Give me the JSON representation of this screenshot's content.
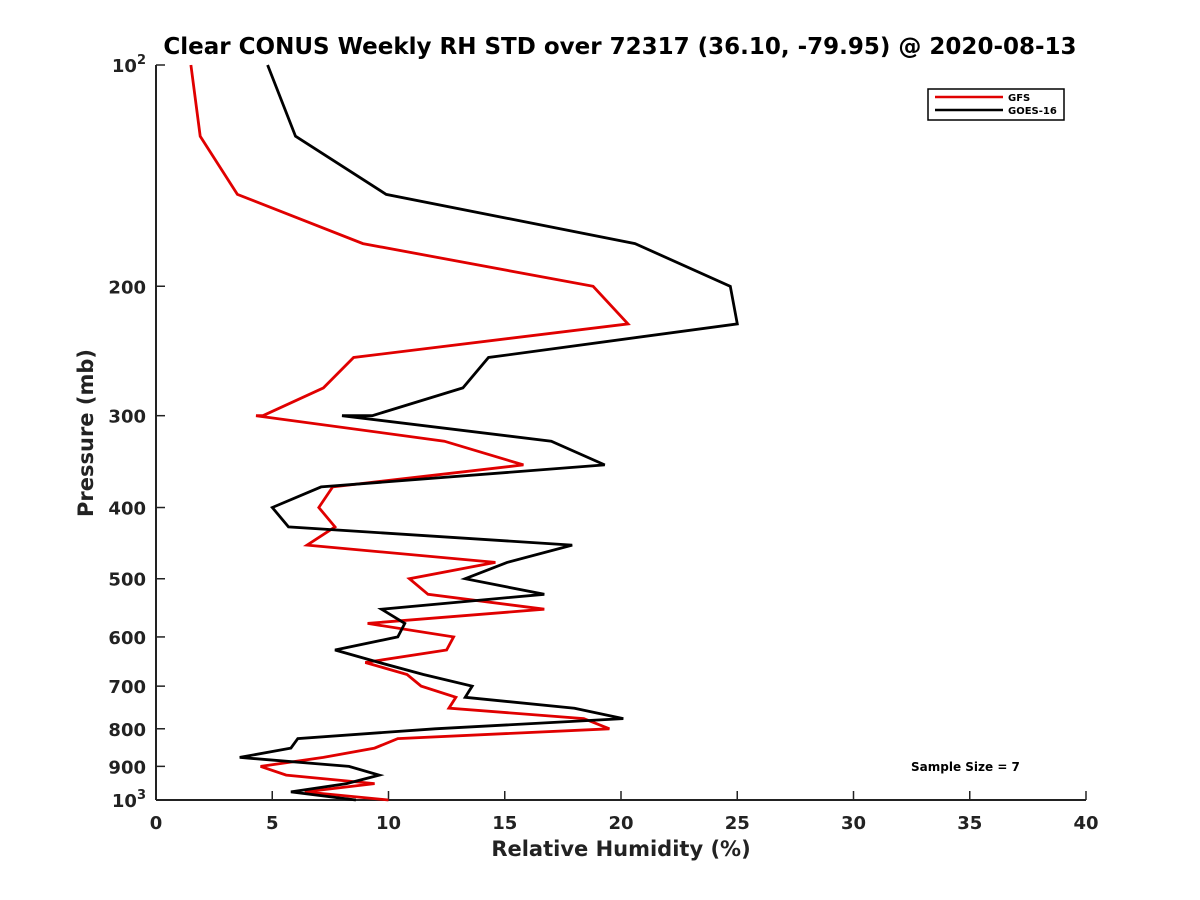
{
  "chart_data": {
    "type": "line",
    "title": "Clear CONUS Weekly RH STD over 72317 (36.10, -79.95) @ 2020-08-13",
    "xlabel": "Relative Humidity (%)",
    "ylabel": "Pressure (mb)",
    "xlim": [
      0,
      40
    ],
    "ylim": [
      1000,
      100
    ],
    "y_scale": "log",
    "y_reversed": true,
    "grid": false,
    "legend_position": "top-right",
    "x_ticks": [
      0,
      5,
      10,
      15,
      20,
      25,
      30,
      35,
      40
    ],
    "x_tick_labels": [
      "0",
      "5",
      "10",
      "15",
      "20",
      "25",
      "30",
      "35",
      "40"
    ],
    "y_ticks": [
      100,
      200,
      300,
      400,
      500,
      600,
      700,
      800,
      900,
      1000
    ],
    "y_tick_labels": [
      {
        "base": "10",
        "exp": "2"
      },
      {
        "base": "200",
        "exp": ""
      },
      {
        "base": "300",
        "exp": ""
      },
      {
        "base": "400",
        "exp": ""
      },
      {
        "base": "500",
        "exp": ""
      },
      {
        "base": "600",
        "exp": ""
      },
      {
        "base": "700",
        "exp": ""
      },
      {
        "base": "800",
        "exp": ""
      },
      {
        "base": "900",
        "exp": ""
      },
      {
        "base": "10",
        "exp": "3"
      }
    ],
    "annotation": "Sample Size = 7",
    "series": [
      {
        "name": "GFS",
        "color": "#e00000",
        "points": [
          {
            "x": 1.5,
            "y": 100
          },
          {
            "x": 1.9,
            "y": 125
          },
          {
            "x": 3.5,
            "y": 150
          },
          {
            "x": 8.9,
            "y": 175
          },
          {
            "x": 18.8,
            "y": 200
          },
          {
            "x": 20.3,
            "y": 225
          },
          {
            "x": 8.5,
            "y": 250
          },
          {
            "x": 7.2,
            "y": 275
          },
          {
            "x": 4.6,
            "y": 300
          },
          {
            "x": 4.3,
            "y": 300
          },
          {
            "x": 12.4,
            "y": 325
          },
          {
            "x": 15.8,
            "y": 350
          },
          {
            "x": 7.6,
            "y": 375
          },
          {
            "x": 7.0,
            "y": 400
          },
          {
            "x": 7.7,
            "y": 425
          },
          {
            "x": 6.5,
            "y": 450
          },
          {
            "x": 14.6,
            "y": 475
          },
          {
            "x": 10.9,
            "y": 500
          },
          {
            "x": 11.7,
            "y": 525
          },
          {
            "x": 16.7,
            "y": 550
          },
          {
            "x": 9.1,
            "y": 575
          },
          {
            "x": 12.8,
            "y": 600
          },
          {
            "x": 12.5,
            "y": 625
          },
          {
            "x": 9.0,
            "y": 650
          },
          {
            "x": 10.8,
            "y": 675
          },
          {
            "x": 11.4,
            "y": 700
          },
          {
            "x": 12.9,
            "y": 725
          },
          {
            "x": 12.6,
            "y": 750
          },
          {
            "x": 18.4,
            "y": 775
          },
          {
            "x": 19.5,
            "y": 800
          },
          {
            "x": 10.4,
            "y": 825
          },
          {
            "x": 9.4,
            "y": 850
          },
          {
            "x": 7.2,
            "y": 875
          },
          {
            "x": 4.5,
            "y": 900
          },
          {
            "x": 5.6,
            "y": 925
          },
          {
            "x": 9.4,
            "y": 950
          },
          {
            "x": 6.4,
            "y": 975
          },
          {
            "x": 10.0,
            "y": 1000
          }
        ]
      },
      {
        "name": "GOES-16",
        "color": "#000000",
        "points": [
          {
            "x": 4.8,
            "y": 100
          },
          {
            "x": 6.0,
            "y": 125
          },
          {
            "x": 9.9,
            "y": 150
          },
          {
            "x": 20.6,
            "y": 175
          },
          {
            "x": 24.7,
            "y": 200
          },
          {
            "x": 25.0,
            "y": 225
          },
          {
            "x": 14.3,
            "y": 250
          },
          {
            "x": 13.2,
            "y": 275
          },
          {
            "x": 9.3,
            "y": 300
          },
          {
            "x": 8.0,
            "y": 300
          },
          {
            "x": 17.0,
            "y": 325
          },
          {
            "x": 19.3,
            "y": 350
          },
          {
            "x": 7.1,
            "y": 375
          },
          {
            "x": 5.0,
            "y": 400
          },
          {
            "x": 5.7,
            "y": 425
          },
          {
            "x": 17.9,
            "y": 450
          },
          {
            "x": 15.1,
            "y": 475
          },
          {
            "x": 13.3,
            "y": 500
          },
          {
            "x": 16.7,
            "y": 525
          },
          {
            "x": 9.7,
            "y": 550
          },
          {
            "x": 10.7,
            "y": 575
          },
          {
            "x": 10.4,
            "y": 600
          },
          {
            "x": 7.7,
            "y": 625
          },
          {
            "x": 9.6,
            "y": 650
          },
          {
            "x": 11.5,
            "y": 675
          },
          {
            "x": 13.6,
            "y": 700
          },
          {
            "x": 13.3,
            "y": 725
          },
          {
            "x": 18.0,
            "y": 750
          },
          {
            "x": 20.1,
            "y": 775
          },
          {
            "x": 12.0,
            "y": 800
          },
          {
            "x": 6.1,
            "y": 825
          },
          {
            "x": 5.8,
            "y": 850
          },
          {
            "x": 3.6,
            "y": 875
          },
          {
            "x": 8.3,
            "y": 900
          },
          {
            "x": 9.6,
            "y": 925
          },
          {
            "x": 8.2,
            "y": 950
          },
          {
            "x": 5.8,
            "y": 975
          },
          {
            "x": 8.6,
            "y": 1000
          }
        ]
      }
    ]
  }
}
